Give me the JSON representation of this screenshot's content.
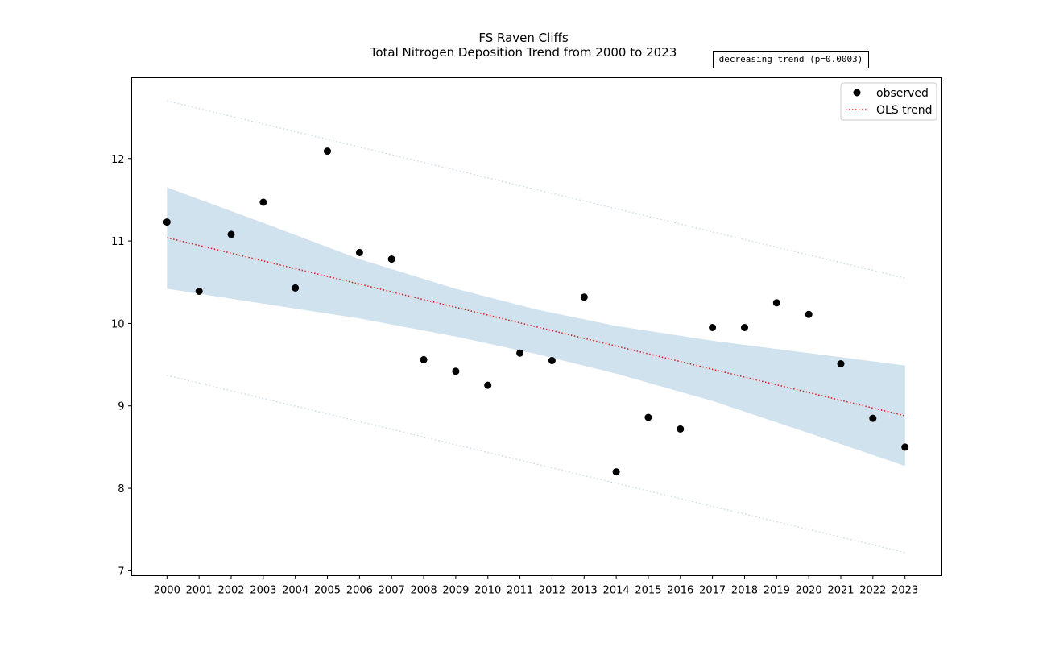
{
  "chart_data": {
    "type": "scatter",
    "title": "FS Raven Cliffs",
    "subtitle": "Total Nitrogen Deposition Trend from 2000 to 2023",
    "annotation": "decreasing trend (p=0.0003)",
    "xlabel": "",
    "ylabel": "",
    "x": [
      2000,
      2001,
      2002,
      2003,
      2004,
      2005,
      2006,
      2007,
      2008,
      2009,
      2010,
      2011,
      2012,
      2013,
      2014,
      2015,
      2016,
      2017,
      2018,
      2019,
      2020,
      2021,
      2022,
      2023
    ],
    "xticks": [
      "2000",
      "2001",
      "2002",
      "2003",
      "2004",
      "2005",
      "2006",
      "2007",
      "2008",
      "2009",
      "2010",
      "2011",
      "2012",
      "2013",
      "2014",
      "2015",
      "2016",
      "2017",
      "2018",
      "2019",
      "2020",
      "2021",
      "2022",
      "2023"
    ],
    "yticks": [
      7,
      8,
      9,
      10,
      11,
      12
    ],
    "ylim": [
      6.94,
      12.98
    ],
    "xlim": [
      1998.9,
      2024.15
    ],
    "grid": false,
    "legend_position": "top-right",
    "series": [
      {
        "name": "observed",
        "kind": "points",
        "color": "#000000",
        "values": [
          11.23,
          10.39,
          11.08,
          11.47,
          10.43,
          12.09,
          10.86,
          10.78,
          9.56,
          9.42,
          9.25,
          9.64,
          9.55,
          10.32,
          8.2,
          8.86,
          8.72,
          9.95,
          9.95,
          10.25,
          10.11,
          9.51,
          8.85,
          8.5
        ]
      },
      {
        "name": "OLS trend",
        "kind": "line",
        "style": "dotted",
        "color": "#d62728",
        "start": [
          2000,
          11.04
        ],
        "end": [
          2023,
          8.88
        ]
      }
    ],
    "confidence_band": {
      "color": "#a6c8e0",
      "x": [
        2000,
        2003,
        2006,
        2009,
        2011.5,
        2014,
        2017,
        2020,
        2023
      ],
      "upper": [
        11.65,
        11.22,
        10.78,
        10.42,
        10.17,
        9.97,
        9.79,
        9.64,
        9.49
      ],
      "lower": [
        10.42,
        10.24,
        10.06,
        9.84,
        9.63,
        9.39,
        9.06,
        8.67,
        8.27
      ]
    },
    "prediction_band": {
      "color": "#c8d8e4",
      "upper_start": [
        2000,
        12.7
      ],
      "upper_end": [
        2023,
        10.55
      ],
      "lower_start": [
        2000,
        9.37
      ],
      "lower_end": [
        2023,
        7.22
      ]
    }
  }
}
